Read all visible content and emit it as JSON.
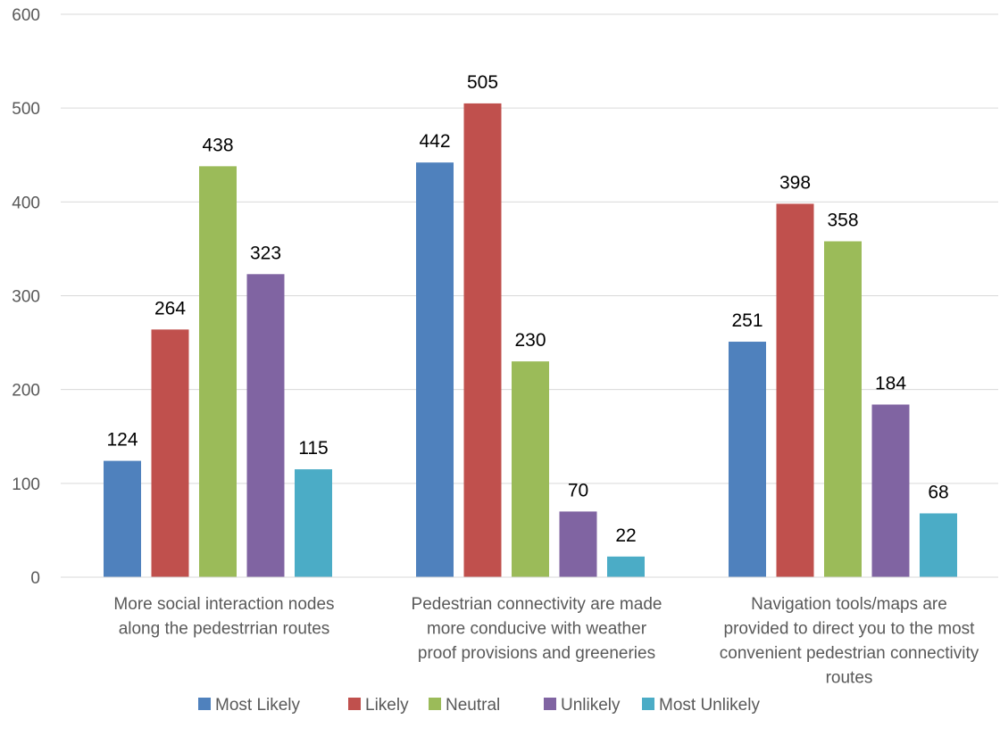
{
  "chart_data": {
    "type": "bar",
    "categories": [
      [
        "More social interaction nodes",
        "along the pedestrrian routes"
      ],
      [
        "Pedestrian connectivity are made",
        "more conducive with weather",
        "proof provisions and greeneries"
      ],
      [
        "Navigation tools/maps are",
        "provided to direct you to the most",
        "convenient pedestrian connectivity",
        "routes"
      ]
    ],
    "series": [
      {
        "name": "Most Likely",
        "color": "#4F81BD",
        "values": [
          124,
          442,
          251
        ]
      },
      {
        "name": "Likely",
        "color": "#C0504D",
        "values": [
          264,
          505,
          398
        ]
      },
      {
        "name": "Neutral",
        "color": "#9BBB59",
        "values": [
          438,
          230,
          358
        ]
      },
      {
        "name": "Unlikely",
        "color": "#8064A2",
        "values": [
          323,
          70,
          184
        ]
      },
      {
        "name": "Most Unlikely",
        "color": "#4BACC6",
        "values": [
          115,
          22,
          68
        ]
      }
    ],
    "ylim": [
      0,
      600
    ],
    "yticks": [
      0,
      100,
      200,
      300,
      400,
      500,
      600
    ],
    "grid": true,
    "legend": "bottom",
    "data_labels": true
  }
}
